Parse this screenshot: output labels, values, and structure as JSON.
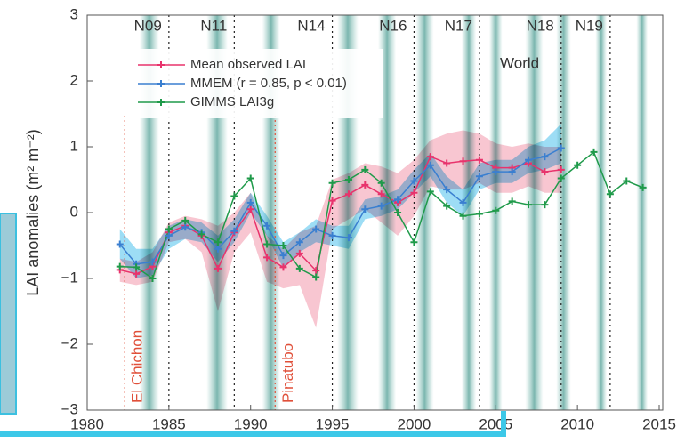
{
  "chart_data": {
    "type": "line",
    "ylabel": "LAI anomalies (m² m⁻²)",
    "xlim": [
      1980,
      2015
    ],
    "ylim": [
      -3,
      3
    ],
    "xticks": [
      1980,
      1985,
      1990,
      1995,
      2000,
      2005,
      2010,
      2015
    ],
    "yticks": [
      {
        "value": -3,
        "label": "−3"
      },
      {
        "value": -2,
        "label": "−2"
      },
      {
        "value": -1,
        "label": "−1"
      },
      0,
      1,
      2,
      3
    ],
    "region": "World",
    "satellites": [
      "N09",
      "N11",
      "N14",
      "N16",
      "N17",
      "N18",
      "N19"
    ],
    "satellite_changes": [
      1985,
      1989,
      1995,
      2000,
      2004,
      2009,
      2012
    ],
    "eruptions": [
      {
        "name": "El Chichon",
        "year": 1982.3
      },
      {
        "name": "Pinatubo",
        "year": 1991.5
      }
    ],
    "shaded_periods": [
      [
        1983.2,
        1984.4
      ],
      [
        1987.3,
        1988.6
      ],
      [
        1990.7,
        1991.8
      ],
      [
        1995.3,
        1996.6
      ],
      [
        1997.8,
        1998.9
      ],
      [
        2000.1,
        2001.2
      ],
      [
        2002.9,
        2003.8
      ],
      [
        2004.6,
        2005.4
      ],
      [
        2006.8,
        2007.9
      ],
      [
        2008.7,
        2009.6
      ],
      [
        2011.1,
        2011.8
      ],
      [
        2013.6,
        2014.3
      ]
    ],
    "series": [
      {
        "name": "Mean observed LAI",
        "color": "#e8336c",
        "band_color": "#f4a0b3",
        "x": [
          1982,
          1983,
          1984,
          1985,
          1986,
          1987,
          1988,
          1989,
          1990,
          1991,
          1992,
          1993,
          1994,
          1995,
          1996,
          1997,
          1998,
          1999,
          2000,
          2001,
          2002,
          2003,
          2004,
          2005,
          2006,
          2007,
          2008,
          2009
        ],
        "values": [
          -0.87,
          -0.93,
          -0.82,
          -0.3,
          -0.2,
          -0.35,
          -0.85,
          -0.3,
          0.05,
          -0.68,
          -0.83,
          -0.62,
          -0.88,
          0.18,
          0.28,
          0.42,
          0.28,
          0.15,
          0.3,
          0.85,
          0.75,
          0.78,
          0.8,
          0.68,
          0.68,
          0.75,
          0.62,
          0.65
        ],
        "band_upper": [
          -0.7,
          -0.75,
          -0.6,
          -0.15,
          -0.05,
          -0.1,
          -0.2,
          0.0,
          0.3,
          -0.35,
          -0.55,
          -0.3,
          -0.2,
          0.5,
          0.6,
          0.75,
          0.7,
          0.6,
          0.8,
          1.1,
          1.2,
          1.25,
          1.2,
          1.05,
          1.0,
          1.05,
          1.0,
          1.0
        ],
        "band_lower": [
          -1.05,
          -1.1,
          -1.05,
          -0.45,
          -0.4,
          -0.6,
          -1.5,
          -0.6,
          -0.3,
          -1.05,
          -1.15,
          -1.1,
          -1.75,
          -0.25,
          -0.1,
          0.05,
          -0.15,
          -0.35,
          -0.05,
          0.4,
          0.35,
          0.35,
          0.45,
          0.3,
          0.3,
          0.4,
          0.3,
          0.3
        ]
      },
      {
        "name": "MMEM (r = 0.85, p < 0.01)",
        "color": "#3a7fd0",
        "band_color": "#5cc6ee",
        "x": [
          1982,
          1983,
          1984,
          1985,
          1986,
          1987,
          1988,
          1989,
          1990,
          1991,
          1992,
          1993,
          1994,
          1995,
          1996,
          1997,
          1998,
          1999,
          2000,
          2001,
          2002,
          2003,
          2004,
          2005,
          2006,
          2007,
          2008,
          2009
        ],
        "values": [
          -0.48,
          -0.78,
          -0.75,
          -0.35,
          -0.22,
          -0.3,
          -0.55,
          -0.28,
          0.15,
          -0.2,
          -0.65,
          -0.45,
          -0.25,
          -0.35,
          -0.38,
          0.05,
          0.1,
          0.2,
          0.48,
          0.72,
          0.35,
          0.15,
          0.55,
          0.62,
          0.62,
          0.8,
          0.85,
          0.98
        ],
        "band_upper": [
          -0.25,
          -0.55,
          -0.55,
          -0.2,
          -0.1,
          -0.15,
          -0.35,
          -0.1,
          0.3,
          -0.05,
          -0.45,
          -0.3,
          -0.1,
          -0.2,
          -0.2,
          0.2,
          0.25,
          0.35,
          0.65,
          0.9,
          0.55,
          0.35,
          0.75,
          0.8,
          0.8,
          1.0,
          1.1,
          1.35
        ],
        "band_lower": [
          -0.7,
          -1.0,
          -0.95,
          -0.55,
          -0.4,
          -0.45,
          -0.75,
          -0.45,
          0.0,
          -0.35,
          -0.85,
          -0.6,
          -0.45,
          -0.5,
          -0.55,
          -0.1,
          -0.05,
          0.05,
          0.3,
          0.55,
          0.15,
          -0.05,
          0.35,
          0.45,
          0.45,
          0.6,
          0.65,
          0.75
        ]
      },
      {
        "name": "GIMMS LAI3g",
        "color": "#1f9a4a",
        "x": [
          1982,
          1983,
          1984,
          1985,
          1986,
          1987,
          1988,
          1989,
          1990,
          1991,
          1992,
          1993,
          1994,
          1995,
          1996,
          1997,
          1998,
          1999,
          2000,
          2001,
          2002,
          2003,
          2004,
          2005,
          2006,
          2007,
          2008,
          2009,
          2010,
          2011,
          2012,
          2013,
          2014
        ],
        "values": [
          -0.82,
          -0.83,
          -1.0,
          -0.25,
          -0.12,
          -0.33,
          -0.45,
          0.25,
          0.52,
          -0.48,
          -0.5,
          -0.85,
          -0.98,
          0.45,
          0.5,
          0.65,
          0.45,
          0.0,
          -0.45,
          0.32,
          0.1,
          -0.05,
          -0.02,
          0.03,
          0.17,
          0.12,
          0.12,
          0.52,
          0.72,
          0.92,
          0.28,
          0.48,
          0.38
        ]
      }
    ]
  }
}
